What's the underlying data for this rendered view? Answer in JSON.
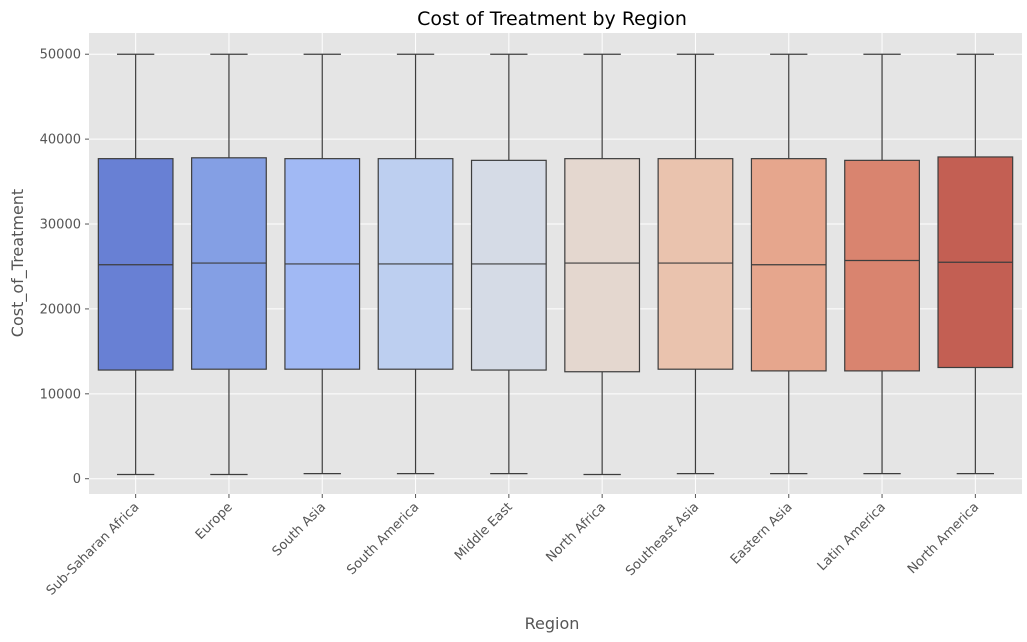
{
  "chart_data": {
    "type": "box",
    "title": "Cost of Treatment by Region",
    "xlabel": "Region",
    "ylabel": "Cost_of_Treatment",
    "ylim": [
      -1800,
      52500
    ],
    "yticks": [
      0,
      10000,
      20000,
      30000,
      40000,
      50000
    ],
    "grid": true,
    "legend": "none",
    "background_color": "#e5e5e5",
    "grid_color": "#ffffff",
    "line_color": "#3d3d3d",
    "categories": [
      "Sub-Saharan Africa",
      "Europe",
      "South Asia",
      "South America",
      "Middle East",
      "North Africa",
      "Southeast Asia",
      "Eastern Asia",
      "Latin America",
      "North America"
    ],
    "colors": [
      "#6880d4",
      "#849fe4",
      "#a1b9f4",
      "#bdcff0",
      "#d5dbe6",
      "#e4d7cf",
      "#eac3ae",
      "#e6a68d",
      "#d9846f",
      "#c35f53"
    ],
    "boxes": [
      {
        "min": 500,
        "q1": 12800,
        "median": 25200,
        "q3": 37700,
        "max": 50000
      },
      {
        "min": 500,
        "q1": 12900,
        "median": 25400,
        "q3": 37800,
        "max": 50000
      },
      {
        "min": 600,
        "q1": 12900,
        "median": 25300,
        "q3": 37700,
        "max": 50000
      },
      {
        "min": 600,
        "q1": 12900,
        "median": 25300,
        "q3": 37700,
        "max": 50000
      },
      {
        "min": 600,
        "q1": 12800,
        "median": 25300,
        "q3": 37500,
        "max": 50000
      },
      {
        "min": 500,
        "q1": 12600,
        "median": 25400,
        "q3": 37700,
        "max": 50000
      },
      {
        "min": 600,
        "q1": 12900,
        "median": 25400,
        "q3": 37700,
        "max": 50000
      },
      {
        "min": 600,
        "q1": 12700,
        "median": 25200,
        "q3": 37700,
        "max": 50000
      },
      {
        "min": 600,
        "q1": 12700,
        "median": 25700,
        "q3": 37500,
        "max": 50000
      },
      {
        "min": 600,
        "q1": 13100,
        "median": 25500,
        "q3": 37900,
        "max": 50000
      }
    ]
  }
}
